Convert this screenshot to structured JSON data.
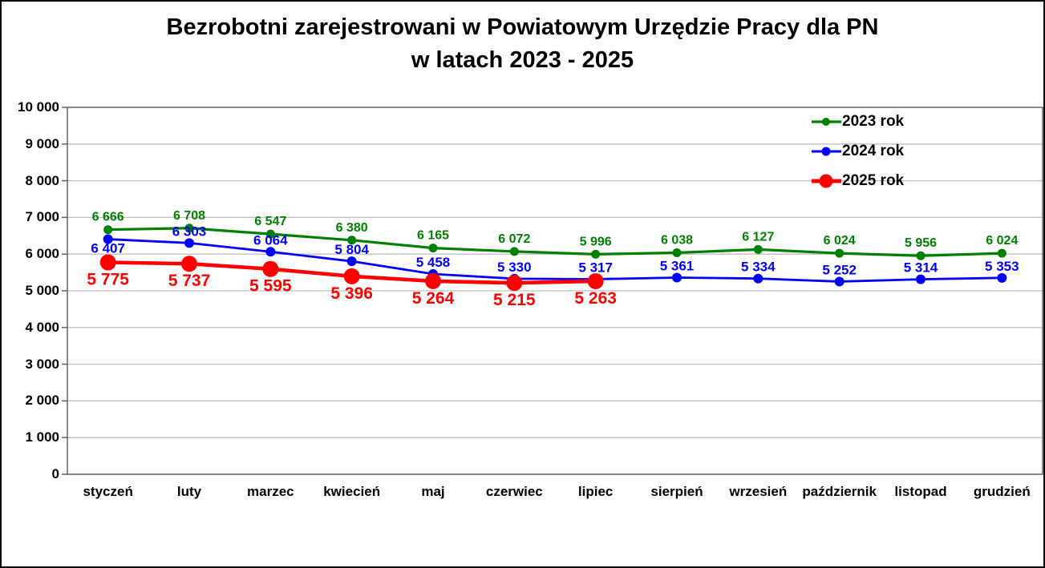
{
  "title": {
    "line1": "Bezrobotni zarejestrowani w Powiatowym Urzędzie Pracy dla PN",
    "line2": "w latach 2023 - 2025"
  },
  "chart_data": {
    "type": "line",
    "title": "Bezrobotni zarejestrowani w Powiatowym Urzędzie Pracy dla PN w latach 2023 - 2025",
    "categories": [
      "styczeń",
      "luty",
      "marzec",
      "kwiecień",
      "maj",
      "czerwiec",
      "lipiec",
      "sierpień",
      "wrzesień",
      "październik",
      "listopad",
      "grudzień"
    ],
    "series": [
      {
        "name": "2023 rok",
        "color": "#008000",
        "values": [
          6666,
          6708,
          6547,
          6380,
          6165,
          6072,
          5996,
          6038,
          6127,
          6024,
          5956,
          6024
        ]
      },
      {
        "name": "2024 rok",
        "color": "#0000ff",
        "values": [
          6407,
          6303,
          6064,
          5804,
          5458,
          5330,
          5317,
          5361,
          5334,
          5252,
          5314,
          5353
        ]
      },
      {
        "name": "2025 rok",
        "color": "#ff0000",
        "values": [
          5775,
          5737,
          5595,
          5396,
          5264,
          5215,
          5263
        ]
      }
    ],
    "ylim": [
      0,
      10000
    ],
    "ytick_step": 1000,
    "y_tick_labels": [
      "0",
      "1 000",
      "2 000",
      "3 000",
      "4 000",
      "5 000",
      "6 000",
      "7 000",
      "8 000",
      "9 000",
      "10 000"
    ],
    "grid": "horizontal",
    "gridline_color": "#bfbfbf",
    "axis_color": "#595959",
    "legend_position": "top-right",
    "data_labels": true,
    "xlabel": "",
    "ylabel": ""
  }
}
